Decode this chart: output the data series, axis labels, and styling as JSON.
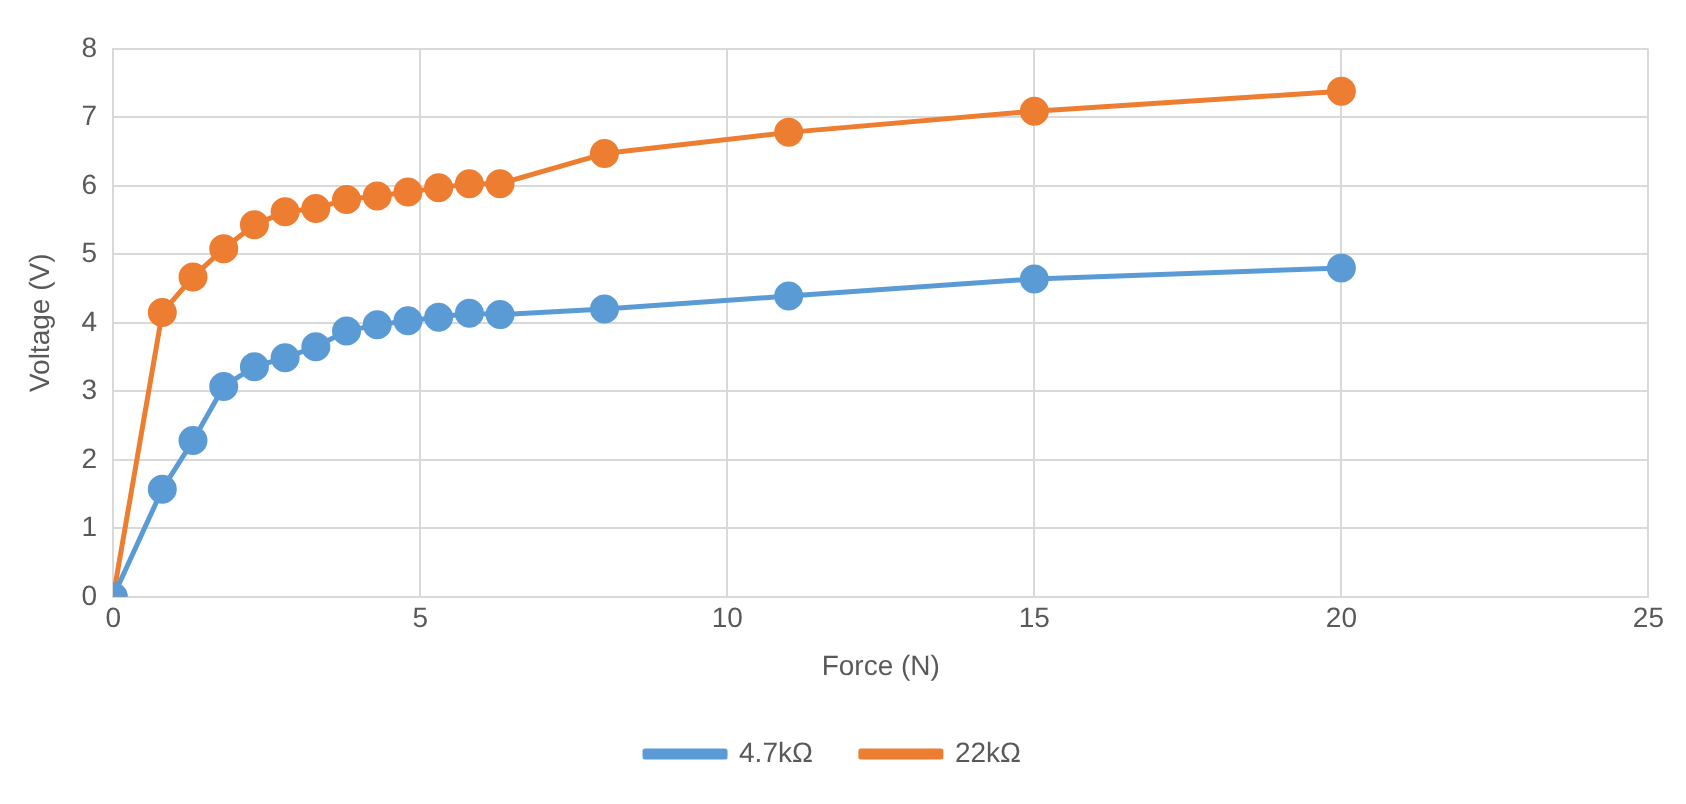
{
  "chart_data": {
    "type": "line",
    "xlabel": "Force (N)",
    "ylabel": "Voltage (V)",
    "x": [
      0,
      0.8,
      1.3,
      1.8,
      2.3,
      2.8,
      3.3,
      3.8,
      4.3,
      4.8,
      5.3,
      5.8,
      6.3,
      8,
      11,
      15,
      20
    ],
    "series": [
      {
        "name": "4.7kΩ",
        "color": "#5b9bd5",
        "values": [
          0,
          1.57,
          2.28,
          3.07,
          3.36,
          3.49,
          3.65,
          3.88,
          3.97,
          4.03,
          4.08,
          4.14,
          4.12,
          4.2,
          4.39,
          4.64,
          4.8
        ]
      },
      {
        "name": "22kΩ",
        "color": "#ed7d31",
        "values": [
          0,
          4.15,
          4.67,
          5.08,
          5.43,
          5.62,
          5.67,
          5.8,
          5.85,
          5.91,
          5.97,
          6.03,
          6.03,
          6.47,
          6.78,
          7.09,
          7.38
        ]
      }
    ],
    "xlim": [
      0,
      25
    ],
    "xticks": [
      0,
      5,
      10,
      15,
      20,
      25
    ],
    "ylim": [
      0,
      8
    ],
    "yticks": [
      0,
      1,
      2,
      3,
      4,
      5,
      6,
      7,
      8
    ],
    "grid": true,
    "legend": "bottom",
    "marker": "circle",
    "line_style": "solid"
  }
}
